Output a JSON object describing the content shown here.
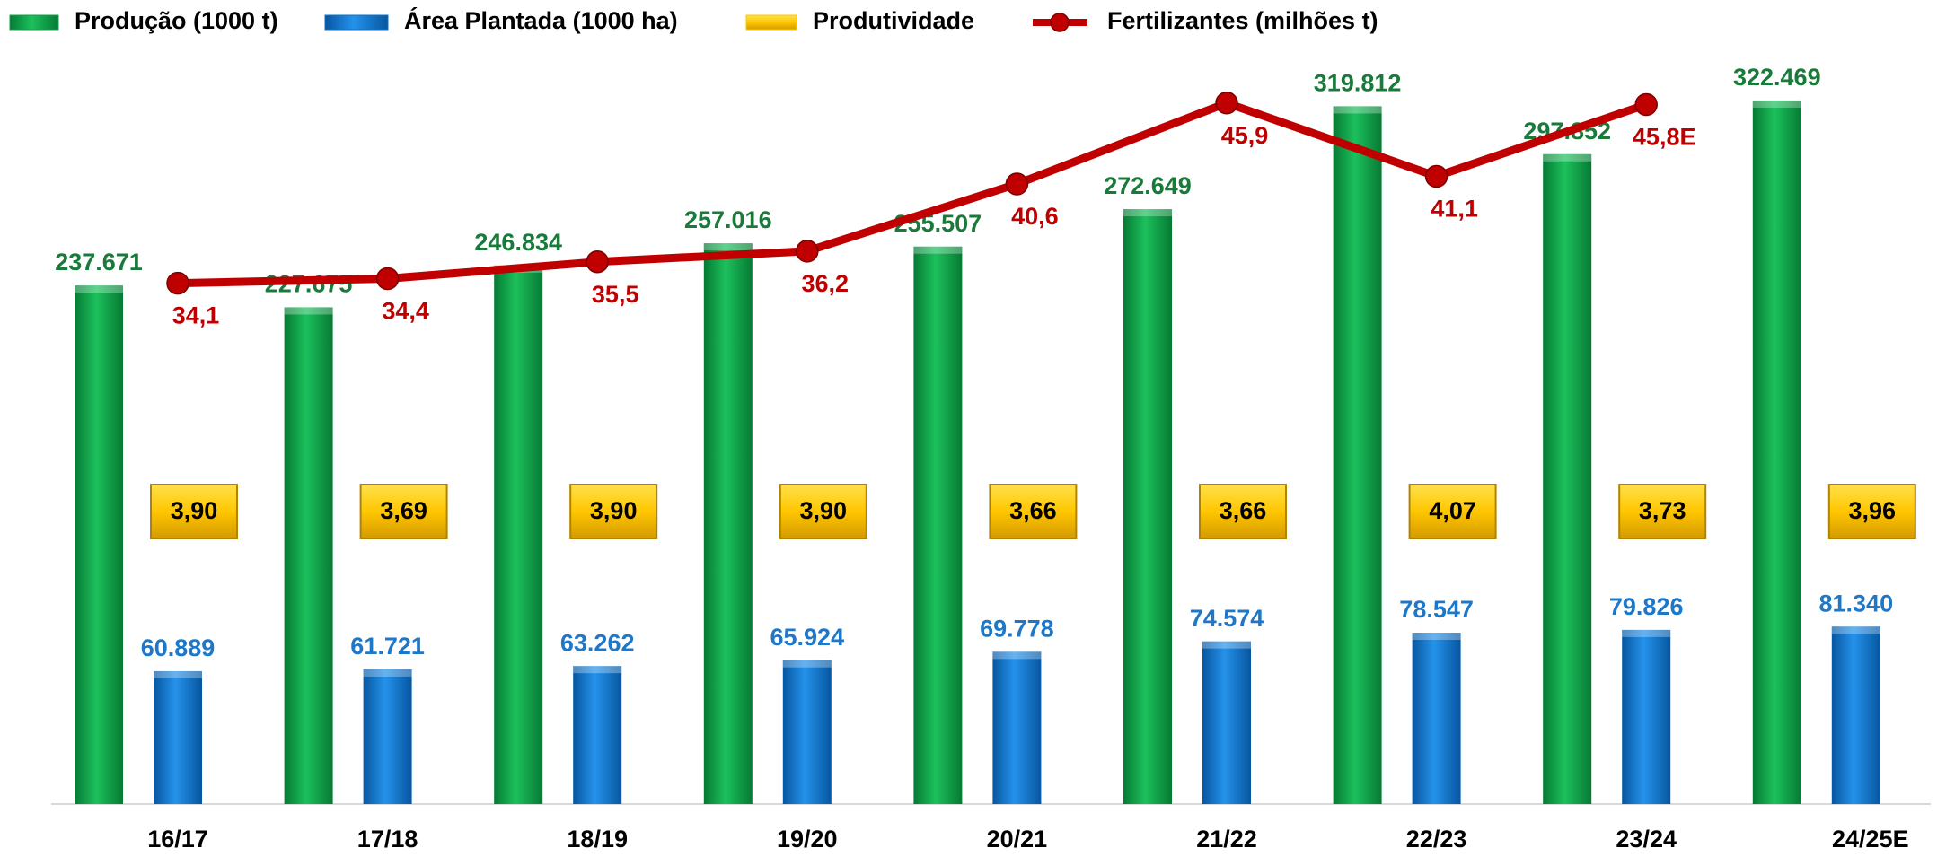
{
  "chart_data": {
    "type": "bar",
    "categories": [
      "16/17",
      "17/18",
      "18/19",
      "19/20",
      "20/21",
      "21/22",
      "22/23",
      "23/24",
      "24/25E"
    ],
    "ylim": [
      0,
      350000
    ],
    "y2lim": [
      0,
      50
    ],
    "legend": "top-left",
    "series": [
      {
        "name": "Produção (1000 t)",
        "type": "bar",
        "color": "#0fa04a",
        "label_color": "#1a7a3a",
        "values": [
          237671,
          227675,
          246834,
          257016,
          255507,
          272649,
          319812,
          297852,
          322469
        ],
        "value_labels": [
          "237.671",
          "227.675",
          "246.834",
          "257.016",
          "255.507",
          "272.649",
          "319.812",
          "297.852",
          "322.469"
        ]
      },
      {
        "name": "Área Plantada (1000 ha)",
        "type": "bar",
        "color": "#0a72c9",
        "label_color": "#1f77c8",
        "values": [
          60889,
          61721,
          63262,
          65924,
          69778,
          74574,
          78547,
          79826,
          81340
        ],
        "value_labels": [
          "60.889",
          "61.721",
          "63.262",
          "65.924",
          "69.778",
          "74.574",
          "78.547",
          "79.826",
          "81.340"
        ]
      },
      {
        "name": "Produtividade",
        "type": "label-box",
        "color": "#ffc600",
        "label_color": "#000000",
        "values": [
          3.9,
          3.69,
          3.9,
          3.9,
          3.66,
          3.66,
          4.07,
          3.73,
          3.96
        ],
        "value_labels": [
          "3,90",
          "3,69",
          "3,90",
          "3,90",
          "3,66",
          "3,66",
          "4,07",
          "3,73",
          "3,96"
        ]
      },
      {
        "name": "Fertilizantes (milhões t)",
        "type": "line",
        "axis": "y2",
        "color": "#c00000",
        "label_color": "#c00000",
        "values": [
          34.1,
          34.4,
          35.5,
          36.2,
          40.6,
          45.9,
          41.1,
          45.8,
          null
        ],
        "value_labels": [
          "34,1",
          "34,4",
          "35,5",
          "36,2",
          "40,6",
          "45,9",
          "41,1",
          "45,8E",
          null
        ]
      }
    ]
  }
}
